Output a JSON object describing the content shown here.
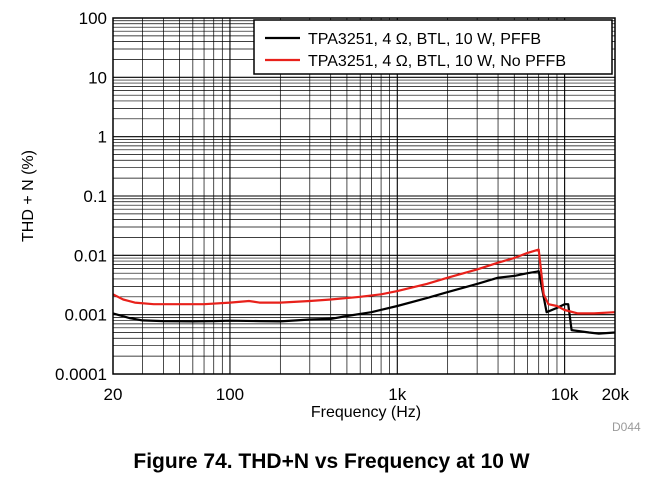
{
  "chart_data": {
    "type": "line",
    "title": "Figure 74. THD+N vs Frequency at 10 W",
    "xlabel": "Frequency (Hz)",
    "ylabel": "THD + N (%)",
    "xscale": "log",
    "yscale": "log",
    "xlim": [
      20,
      20000
    ],
    "ylim": [
      0.0001,
      100
    ],
    "grid": true,
    "legend_position": "top-right",
    "figure_id": "D044",
    "x_ticks": [
      {
        "value": 20,
        "label": "20"
      },
      {
        "value": 100,
        "label": "100"
      },
      {
        "value": 1000,
        "label": "1k"
      },
      {
        "value": 10000,
        "label": "10k"
      },
      {
        "value": 20000,
        "label": "20k"
      }
    ],
    "y_ticks": [
      {
        "value": 100,
        "label": "100"
      },
      {
        "value": 10,
        "label": "10"
      },
      {
        "value": 1,
        "label": "1"
      },
      {
        "value": 0.1,
        "label": "0.1"
      },
      {
        "value": 0.01,
        "label": "0.01"
      },
      {
        "value": 0.001,
        "label": "0.001"
      },
      {
        "value": 0.0001,
        "label": "0.0001"
      }
    ],
    "series": [
      {
        "name": "TPA3251, 4 Ω, BTL, 10 W, PFFB",
        "color": "#000000",
        "points": [
          [
            20,
            0.00105
          ],
          [
            25,
            0.00088
          ],
          [
            30,
            0.0008
          ],
          [
            40,
            0.00078
          ],
          [
            60,
            0.00077
          ],
          [
            80,
            0.00078
          ],
          [
            100,
            0.00079
          ],
          [
            150,
            0.00078
          ],
          [
            200,
            0.00077
          ],
          [
            250,
            0.0008
          ],
          [
            300,
            0.00083
          ],
          [
            400,
            0.00085
          ],
          [
            500,
            0.00095
          ],
          [
            700,
            0.0011
          ],
          [
            1000,
            0.0014
          ],
          [
            1500,
            0.0019
          ],
          [
            2000,
            0.0024
          ],
          [
            3000,
            0.0033
          ],
          [
            4000,
            0.0042
          ],
          [
            5000,
            0.0045
          ],
          [
            6000,
            0.005
          ],
          [
            6800,
            0.0053
          ],
          [
            7000,
            0.0054
          ],
          [
            7800,
            0.0011
          ],
          [
            9000,
            0.0013
          ],
          [
            10000,
            0.0015
          ],
          [
            10500,
            0.0015
          ],
          [
            11000,
            0.00055
          ],
          [
            14000,
            0.0005
          ],
          [
            16000,
            0.00048
          ],
          [
            20000,
            0.0005
          ]
        ]
      },
      {
        "name": "TPA3251, 4 Ω, BTL, 10 W, No PFFB",
        "color": "#e8211b",
        "points": [
          [
            20,
            0.0022
          ],
          [
            23,
            0.0018
          ],
          [
            27,
            0.0016
          ],
          [
            35,
            0.0015
          ],
          [
            50,
            0.0015
          ],
          [
            70,
            0.0015
          ],
          [
            100,
            0.0016
          ],
          [
            130,
            0.0017
          ],
          [
            150,
            0.0016
          ],
          [
            200,
            0.0016
          ],
          [
            300,
            0.0017
          ],
          [
            400,
            0.0018
          ],
          [
            600,
            0.002
          ],
          [
            800,
            0.0022
          ],
          [
            1000,
            0.0025
          ],
          [
            1500,
            0.0033
          ],
          [
            2000,
            0.0042
          ],
          [
            3000,
            0.0058
          ],
          [
            4000,
            0.0075
          ],
          [
            5000,
            0.009
          ],
          [
            6000,
            0.011
          ],
          [
            7000,
            0.0125
          ],
          [
            7500,
            0.0022
          ],
          [
            8000,
            0.0015
          ],
          [
            9000,
            0.0014
          ],
          [
            10000,
            0.0012
          ],
          [
            12000,
            0.00105
          ],
          [
            15000,
            0.00105
          ],
          [
            20000,
            0.0011
          ]
        ]
      }
    ]
  }
}
